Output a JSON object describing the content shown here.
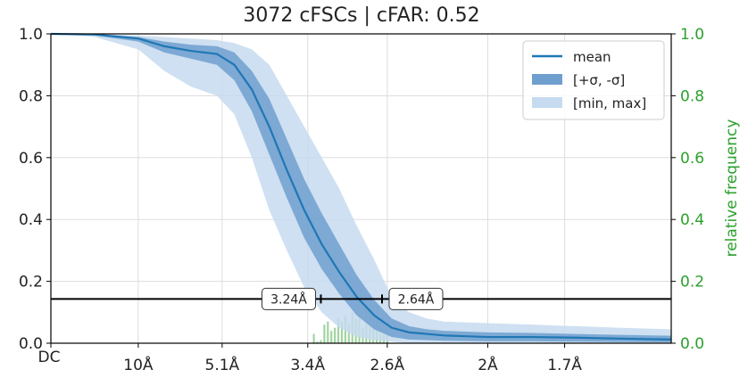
{
  "chart_data": {
    "type": "line",
    "title": "3072 cFSCs | cFAR: 0.52",
    "x_resolution_ticks": [
      "DC",
      "10Å",
      "5.1Å",
      "3.4Å",
      "2.6Å",
      "2Å",
      "1.7Å"
    ],
    "x_tick_positions": [
      0.0,
      0.1,
      0.196,
      0.294,
      0.385,
      0.5,
      0.588
    ],
    "xlim": [
      0.0,
      0.71
    ],
    "ylim": [
      0.0,
      1.0
    ],
    "y_ticks": [
      "0.0",
      "0.2",
      "0.4",
      "0.6",
      "0.8",
      "1.0"
    ],
    "right_axis": {
      "ylabel": "relative frequency",
      "ylim": [
        0.0,
        1.0
      ],
      "ticks": [
        "0.0",
        "0.2",
        "0.4",
        "0.6",
        "0.8",
        "1.0"
      ],
      "color": "#2ca02c"
    },
    "grid": true,
    "legend": {
      "placement": "top-right",
      "entries": [
        "mean",
        "[+σ, -σ]",
        "[min, max]"
      ]
    },
    "colors": {
      "mean": "#1f77b4",
      "sigma_band": "#6f9fcf",
      "minmax_band": "#c6dbef",
      "histogram": "#2ca02c",
      "threshold": "#000000"
    },
    "threshold": {
      "y": 0.143,
      "markers": [
        {
          "x": 0.309,
          "label": "3.24Å"
        },
        {
          "x": 0.379,
          "label": "2.64Å"
        }
      ]
    },
    "series": [
      {
        "name": "mean",
        "x": [
          0.0,
          0.05,
          0.1,
          0.13,
          0.16,
          0.19,
          0.21,
          0.23,
          0.25,
          0.27,
          0.29,
          0.31,
          0.33,
          0.35,
          0.37,
          0.39,
          0.41,
          0.43,
          0.45,
          0.5,
          0.55,
          0.6,
          0.65,
          0.71
        ],
        "y": [
          1.0,
          0.998,
          0.985,
          0.96,
          0.945,
          0.935,
          0.9,
          0.82,
          0.7,
          0.56,
          0.43,
          0.32,
          0.23,
          0.15,
          0.09,
          0.05,
          0.035,
          0.03,
          0.025,
          0.02,
          0.02,
          0.018,
          0.015,
          0.012
        ]
      },
      {
        "name": "[+σ, -σ]",
        "x": [
          0.0,
          0.05,
          0.1,
          0.13,
          0.16,
          0.19,
          0.21,
          0.23,
          0.25,
          0.27,
          0.29,
          0.31,
          0.33,
          0.35,
          0.37,
          0.39,
          0.41,
          0.43,
          0.45,
          0.5,
          0.55,
          0.6,
          0.65,
          0.71
        ],
        "upper": [
          1.0,
          0.999,
          0.99,
          0.975,
          0.965,
          0.96,
          0.94,
          0.88,
          0.79,
          0.66,
          0.53,
          0.42,
          0.32,
          0.22,
          0.14,
          0.08,
          0.055,
          0.045,
          0.04,
          0.035,
          0.033,
          0.03,
          0.027,
          0.024
        ],
        "lower": [
          1.0,
          0.995,
          0.975,
          0.94,
          0.92,
          0.9,
          0.85,
          0.75,
          0.61,
          0.47,
          0.34,
          0.24,
          0.16,
          0.09,
          0.045,
          0.02,
          0.012,
          0.01,
          0.008,
          0.006,
          0.006,
          0.005,
          0.004,
          0.003
        ]
      },
      {
        "name": "[min, max]",
        "x": [
          0.0,
          0.05,
          0.1,
          0.13,
          0.16,
          0.19,
          0.21,
          0.23,
          0.25,
          0.27,
          0.29,
          0.31,
          0.33,
          0.35,
          0.37,
          0.39,
          0.41,
          0.43,
          0.45,
          0.5,
          0.55,
          0.6,
          0.65,
          0.71
        ],
        "upper": [
          1.0,
          1.0,
          0.995,
          0.99,
          0.985,
          0.98,
          0.97,
          0.95,
          0.9,
          0.8,
          0.7,
          0.6,
          0.5,
          0.38,
          0.27,
          0.15,
          0.1,
          0.08,
          0.07,
          0.065,
          0.06,
          0.055,
          0.05,
          0.045
        ],
        "lower": [
          1.0,
          0.99,
          0.95,
          0.88,
          0.83,
          0.8,
          0.74,
          0.6,
          0.43,
          0.3,
          0.18,
          0.1,
          0.05,
          0.02,
          0.01,
          0.005,
          0.0,
          0.0,
          0.0,
          0.0,
          0.0,
          0.0,
          0.0,
          0.0
        ]
      }
    ],
    "histogram": {
      "x": [
        0.301,
        0.305,
        0.309,
        0.313,
        0.317,
        0.321,
        0.325,
        0.329,
        0.333,
        0.337,
        0.341,
        0.345,
        0.349,
        0.353,
        0.357,
        0.361,
        0.365,
        0.369,
        0.373,
        0.377,
        0.381,
        0.385
      ],
      "heights": [
        0.03,
        0.005,
        0.01,
        0.06,
        0.07,
        0.04,
        0.05,
        0.08,
        0.07,
        0.09,
        0.06,
        0.1,
        0.08,
        0.09,
        0.05,
        0.11,
        0.13,
        0.1,
        0.12,
        0.08,
        0.06,
        0.04
      ]
    }
  }
}
